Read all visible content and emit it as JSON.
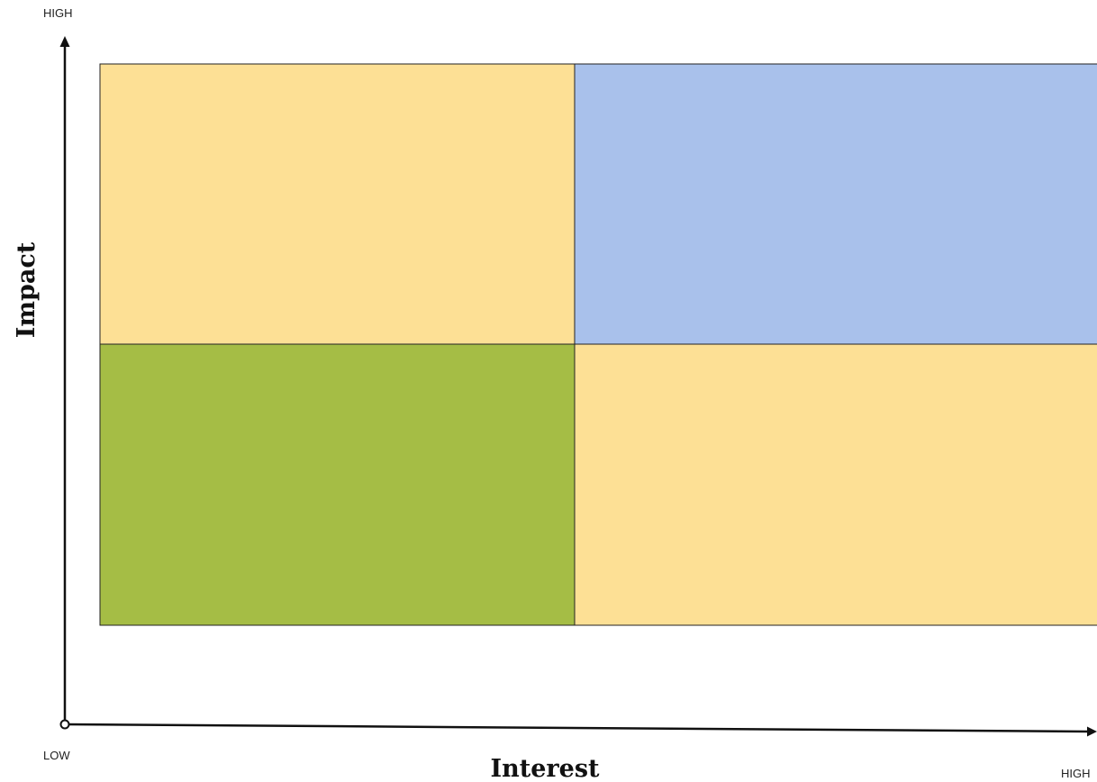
{
  "axes": {
    "y_title": "Impact",
    "x_title": "Interest",
    "y_high_label": "HIGH",
    "x_high_label": "HIGH",
    "origin_label": "LOW"
  },
  "quadrants": {
    "top_left": {
      "color": "#FDE095"
    },
    "top_right": {
      "color": "#A9C1EB"
    },
    "bottom_left": {
      "color": "#A5BD45"
    },
    "bottom_right": {
      "color": "#FDE095"
    }
  },
  "colors": {
    "axis_line": "#111111",
    "grid_border": "#222222"
  }
}
